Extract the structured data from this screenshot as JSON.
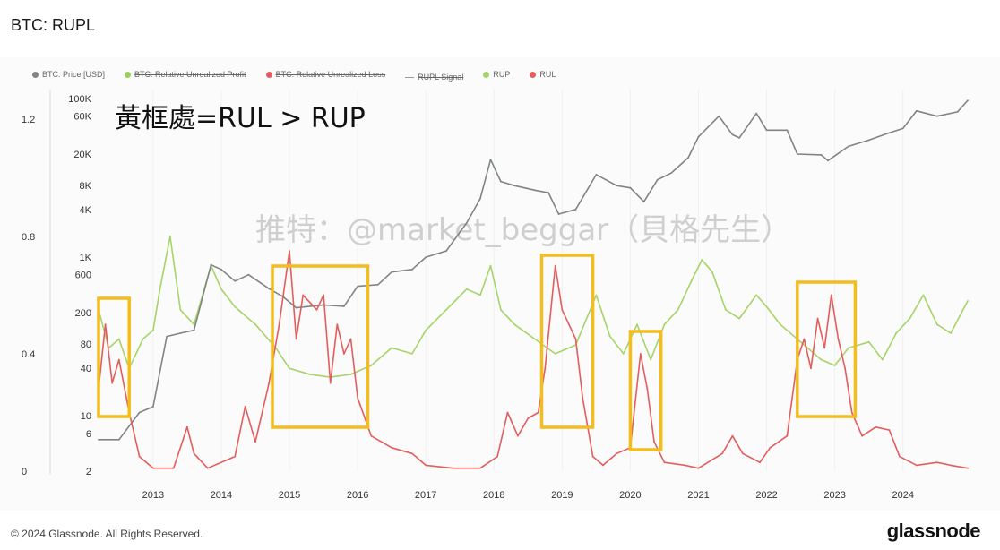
{
  "title": "BTC: RUPL",
  "legend": [
    {
      "label": "BTC: Price [USD]",
      "color": "#7f8582",
      "style": "dot",
      "struck": false
    },
    {
      "label": "BTC: Relative Unrealized Profit",
      "color": "#9bcf5f",
      "style": "dot",
      "struck": true
    },
    {
      "label": "BTC: Relative Unrealized Loss",
      "color": "#e35d5d",
      "style": "dot",
      "struck": true
    },
    {
      "label": "RUPL Signal",
      "color": "#999999",
      "style": "line",
      "struck": true
    },
    {
      "label": "RUP",
      "color": "#a6d468",
      "style": "dot",
      "struck": false
    },
    {
      "label": "RUL",
      "color": "#e35d5d",
      "style": "dot",
      "struck": false
    }
  ],
  "annotation": "黃框處=RUL > RUP",
  "watermark": "推特：@market_beggar（貝格先生）",
  "footer": "© 2024 Glassnode. All Rights Reserved.",
  "brand": "glassnode",
  "colors": {
    "price": "#7f8582",
    "rup": "#a6d468",
    "rul": "#e35d5d",
    "box": "#f2bd1d"
  },
  "chart_data": {
    "type": "line",
    "xlabel": "",
    "ylabel": "",
    "x_ticks": [
      "2013",
      "2014",
      "2015",
      "2016",
      "2017",
      "2018",
      "2019",
      "2020",
      "2021",
      "2022",
      "2023",
      "2024"
    ],
    "x_range": [
      2012.2,
      2024.95
    ],
    "left_axis": {
      "ticks": [
        "1.2",
        "0.8",
        "0.4",
        "0"
      ],
      "range": [
        0,
        1.3
      ]
    },
    "right_axis": {
      "scale": "log",
      "ticks": [
        "100K",
        "60K",
        "20K",
        "8K",
        "4K",
        "1K",
        "600",
        "200",
        "80",
        "40",
        "10",
        "6",
        "2"
      ],
      "range": [
        2,
        130000
      ]
    },
    "highlight_periods": [
      [
        2012.2,
        2012.65
      ],
      [
        2014.75,
        2016.15
      ],
      [
        2018.7,
        2019.45
      ],
      [
        2020.0,
        2020.45
      ],
      [
        2022.45,
        2023.3
      ]
    ],
    "series": [
      {
        "name": "BTC: Price [USD]",
        "axis": "right",
        "points": [
          [
            2012.2,
            5
          ],
          [
            2012.5,
            5
          ],
          [
            2012.8,
            11
          ],
          [
            2013.0,
            13
          ],
          [
            2013.2,
            100
          ],
          [
            2013.4,
            110
          ],
          [
            2013.6,
            120
          ],
          [
            2013.85,
            800
          ],
          [
            2014.0,
            700
          ],
          [
            2014.2,
            500
          ],
          [
            2014.4,
            600
          ],
          [
            2014.7,
            400
          ],
          [
            2014.9,
            320
          ],
          [
            2015.1,
            230
          ],
          [
            2015.5,
            250
          ],
          [
            2015.8,
            240
          ],
          [
            2016.0,
            430
          ],
          [
            2016.3,
            450
          ],
          [
            2016.5,
            650
          ],
          [
            2016.8,
            700
          ],
          [
            2017.0,
            1000
          ],
          [
            2017.3,
            1200
          ],
          [
            2017.6,
            2700
          ],
          [
            2017.8,
            5500
          ],
          [
            2017.95,
            17000
          ],
          [
            2018.1,
            9000
          ],
          [
            2018.3,
            8000
          ],
          [
            2018.6,
            7000
          ],
          [
            2018.8,
            6500
          ],
          [
            2018.95,
            3500
          ],
          [
            2019.2,
            4000
          ],
          [
            2019.5,
            11000
          ],
          [
            2019.8,
            8000
          ],
          [
            2020.0,
            7500
          ],
          [
            2020.2,
            5000
          ],
          [
            2020.4,
            9500
          ],
          [
            2020.6,
            11500
          ],
          [
            2020.85,
            18000
          ],
          [
            2021.0,
            33000
          ],
          [
            2021.3,
            60000
          ],
          [
            2021.5,
            35000
          ],
          [
            2021.6,
            32000
          ],
          [
            2021.85,
            65000
          ],
          [
            2022.0,
            40000
          ],
          [
            2022.3,
            40000
          ],
          [
            2022.45,
            20000
          ],
          [
            2022.8,
            19500
          ],
          [
            2022.9,
            16500
          ],
          [
            2023.2,
            25000
          ],
          [
            2023.5,
            30000
          ],
          [
            2023.8,
            37000
          ],
          [
            2024.0,
            42000
          ],
          [
            2024.2,
            70000
          ],
          [
            2024.5,
            60000
          ],
          [
            2024.8,
            68000
          ],
          [
            2024.95,
            95000
          ]
        ]
      },
      {
        "name": "RUP",
        "axis": "left",
        "points": [
          [
            2012.2,
            0.55
          ],
          [
            2012.35,
            0.42
          ],
          [
            2012.5,
            0.45
          ],
          [
            2012.65,
            0.35
          ],
          [
            2012.85,
            0.45
          ],
          [
            2013.0,
            0.48
          ],
          [
            2013.1,
            0.62
          ],
          [
            2013.25,
            0.8
          ],
          [
            2013.4,
            0.55
          ],
          [
            2013.6,
            0.5
          ],
          [
            2013.85,
            0.7
          ],
          [
            2014.0,
            0.62
          ],
          [
            2014.2,
            0.56
          ],
          [
            2014.5,
            0.5
          ],
          [
            2014.8,
            0.42
          ],
          [
            2015.0,
            0.35
          ],
          [
            2015.3,
            0.33
          ],
          [
            2015.6,
            0.32
          ],
          [
            2015.9,
            0.33
          ],
          [
            2016.2,
            0.36
          ],
          [
            2016.5,
            0.42
          ],
          [
            2016.8,
            0.4
          ],
          [
            2017.0,
            0.48
          ],
          [
            2017.3,
            0.55
          ],
          [
            2017.6,
            0.62
          ],
          [
            2017.8,
            0.6
          ],
          [
            2017.95,
            0.7
          ],
          [
            2018.1,
            0.55
          ],
          [
            2018.3,
            0.5
          ],
          [
            2018.6,
            0.45
          ],
          [
            2018.9,
            0.4
          ],
          [
            2019.2,
            0.43
          ],
          [
            2019.5,
            0.6
          ],
          [
            2019.7,
            0.46
          ],
          [
            2019.9,
            0.4
          ],
          [
            2020.1,
            0.5
          ],
          [
            2020.3,
            0.38
          ],
          [
            2020.5,
            0.5
          ],
          [
            2020.7,
            0.55
          ],
          [
            2020.9,
            0.65
          ],
          [
            2021.05,
            0.72
          ],
          [
            2021.2,
            0.68
          ],
          [
            2021.4,
            0.55
          ],
          [
            2021.6,
            0.52
          ],
          [
            2021.85,
            0.6
          ],
          [
            2022.0,
            0.56
          ],
          [
            2022.2,
            0.5
          ],
          [
            2022.4,
            0.46
          ],
          [
            2022.6,
            0.42
          ],
          [
            2022.8,
            0.38
          ],
          [
            2023.0,
            0.36
          ],
          [
            2023.2,
            0.42
          ],
          [
            2023.5,
            0.44
          ],
          [
            2023.7,
            0.38
          ],
          [
            2023.9,
            0.47
          ],
          [
            2024.1,
            0.52
          ],
          [
            2024.3,
            0.6
          ],
          [
            2024.5,
            0.5
          ],
          [
            2024.7,
            0.47
          ],
          [
            2024.95,
            0.58
          ]
        ]
      },
      {
        "name": "RUL",
        "axis": "left",
        "points": [
          [
            2012.2,
            0.28
          ],
          [
            2012.3,
            0.5
          ],
          [
            2012.4,
            0.3
          ],
          [
            2012.5,
            0.38
          ],
          [
            2012.65,
            0.2
          ],
          [
            2012.8,
            0.05
          ],
          [
            2013.0,
            0.01
          ],
          [
            2013.3,
            0.01
          ],
          [
            2013.5,
            0.15
          ],
          [
            2013.6,
            0.06
          ],
          [
            2013.8,
            0.01
          ],
          [
            2014.2,
            0.05
          ],
          [
            2014.35,
            0.22
          ],
          [
            2014.5,
            0.1
          ],
          [
            2014.7,
            0.3
          ],
          [
            2014.85,
            0.5
          ],
          [
            2015.0,
            0.75
          ],
          [
            2015.1,
            0.45
          ],
          [
            2015.2,
            0.6
          ],
          [
            2015.4,
            0.55
          ],
          [
            2015.5,
            0.6
          ],
          [
            2015.6,
            0.3
          ],
          [
            2015.7,
            0.5
          ],
          [
            2015.8,
            0.4
          ],
          [
            2015.9,
            0.45
          ],
          [
            2016.0,
            0.25
          ],
          [
            2016.2,
            0.12
          ],
          [
            2016.5,
            0.08
          ],
          [
            2016.8,
            0.06
          ],
          [
            2017.0,
            0.02
          ],
          [
            2017.4,
            0.01
          ],
          [
            2017.8,
            0.01
          ],
          [
            2018.05,
            0.05
          ],
          [
            2018.2,
            0.2
          ],
          [
            2018.35,
            0.12
          ],
          [
            2018.5,
            0.18
          ],
          [
            2018.65,
            0.2
          ],
          [
            2018.75,
            0.35
          ],
          [
            2018.9,
            0.7
          ],
          [
            2019.0,
            0.55
          ],
          [
            2019.1,
            0.5
          ],
          [
            2019.2,
            0.45
          ],
          [
            2019.3,
            0.25
          ],
          [
            2019.45,
            0.05
          ],
          [
            2019.6,
            0.02
          ],
          [
            2019.8,
            0.06
          ],
          [
            2020.0,
            0.08
          ],
          [
            2020.15,
            0.4
          ],
          [
            2020.25,
            0.28
          ],
          [
            2020.35,
            0.1
          ],
          [
            2020.5,
            0.03
          ],
          [
            2020.8,
            0.02
          ],
          [
            2021.0,
            0.01
          ],
          [
            2021.35,
            0.06
          ],
          [
            2021.5,
            0.12
          ],
          [
            2021.65,
            0.06
          ],
          [
            2021.9,
            0.03
          ],
          [
            2022.05,
            0.08
          ],
          [
            2022.3,
            0.12
          ],
          [
            2022.45,
            0.38
          ],
          [
            2022.55,
            0.45
          ],
          [
            2022.65,
            0.35
          ],
          [
            2022.75,
            0.52
          ],
          [
            2022.85,
            0.42
          ],
          [
            2022.95,
            0.6
          ],
          [
            2023.05,
            0.45
          ],
          [
            2023.15,
            0.35
          ],
          [
            2023.25,
            0.2
          ],
          [
            2023.4,
            0.12
          ],
          [
            2023.6,
            0.15
          ],
          [
            2023.8,
            0.14
          ],
          [
            2023.95,
            0.05
          ],
          [
            2024.2,
            0.02
          ],
          [
            2024.5,
            0.03
          ],
          [
            2024.7,
            0.02
          ],
          [
            2024.95,
            0.01
          ]
        ]
      }
    ]
  }
}
